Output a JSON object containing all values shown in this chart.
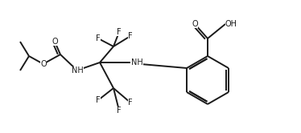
{
  "background": "#ffffff",
  "line_color": "#1a1a1a",
  "line_width": 1.4,
  "font_size": 7.0,
  "figsize": [
    3.74,
    1.66
  ],
  "dpi": 100,
  "atoms": {
    "F_labels": "F",
    "O_label": "O",
    "NH_label": "NH",
    "OH_label": "OH",
    "COOH_O_label": "O",
    "COOH_OH_label": "OH"
  }
}
